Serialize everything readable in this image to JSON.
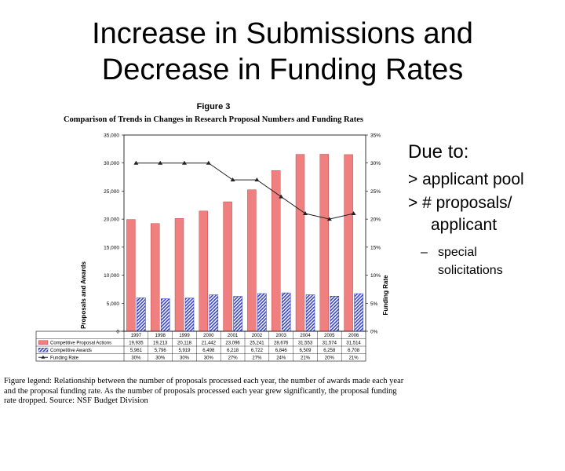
{
  "slide": {
    "title_line1": "Increase in Submissions and",
    "title_line2": "Decrease in Funding Rates"
  },
  "bullets": {
    "heading": "Due to:",
    "item1": "> applicant pool",
    "item2a": "> # proposals/",
    "item2b": "applicant",
    "sub_dash": "–",
    "sub1a": "special",
    "sub1b": "solicitations"
  },
  "figure": {
    "label": "Figure 3",
    "legend_text": "Figure legend: Relationship between the number of proposals processed each year, the number of awards made each year and the proposal funding rate. As the number of proposals processed each year grew significantly, the proposal funding rate dropped. Source: NSF Budget Division"
  },
  "colors": {
    "proposals": "#f08080",
    "proposals_stroke": "#b03030",
    "awards": "#3a46c8",
    "rate_line": "#222222"
  },
  "chart_data": {
    "type": "bar",
    "title": "Comparison of Trends in Changes in Research Proposal Numbers and Funding Rates",
    "ylabel": "Proposals and Awards",
    "y2label": "Funding Rate",
    "ylim": [
      0,
      35000
    ],
    "y2lim": [
      0,
      35
    ],
    "yticks": [
      "0",
      "5,000",
      "10,000",
      "15,000",
      "20,000",
      "25,000",
      "30,000",
      "35,000"
    ],
    "y2ticks": [
      "0%",
      "5%",
      "10%",
      "15%",
      "20%",
      "25%",
      "30%",
      "35%"
    ],
    "categories": [
      "1997",
      "1998",
      "1999",
      "2000",
      "2001",
      "2002",
      "2003",
      "2004",
      "2005",
      "2006"
    ],
    "series": [
      {
        "name": "Competitive Proposal Actions",
        "kind": "bar",
        "values": [
          19935,
          19213,
          20118,
          21442,
          23096,
          25241,
          28676,
          31553,
          31574,
          31514
        ],
        "labels": [
          "19,935",
          "19,213",
          "20,118",
          "21,442",
          "23,096",
          "25,241",
          "28,676",
          "31,553",
          "31,574",
          "31,514"
        ]
      },
      {
        "name": "Competitive Awards",
        "kind": "bar",
        "values": [
          5961,
          5796,
          5919,
          6498,
          6218,
          6722,
          6846,
          6509,
          6258,
          6708
        ],
        "labels": [
          "5,961",
          "5,796",
          "5,919",
          "6,498",
          "6,218",
          "6,722",
          "6,846",
          "6,509",
          "6,258",
          "6,708"
        ]
      },
      {
        "name": "Funding Rate",
        "kind": "line",
        "values": [
          30,
          30,
          30,
          30,
          27,
          27,
          24,
          21,
          20,
          21
        ],
        "labels": [
          "30%",
          "30%",
          "30%",
          "30%",
          "27%",
          "27%",
          "24%",
          "21%",
          "20%",
          "21%"
        ]
      }
    ]
  }
}
